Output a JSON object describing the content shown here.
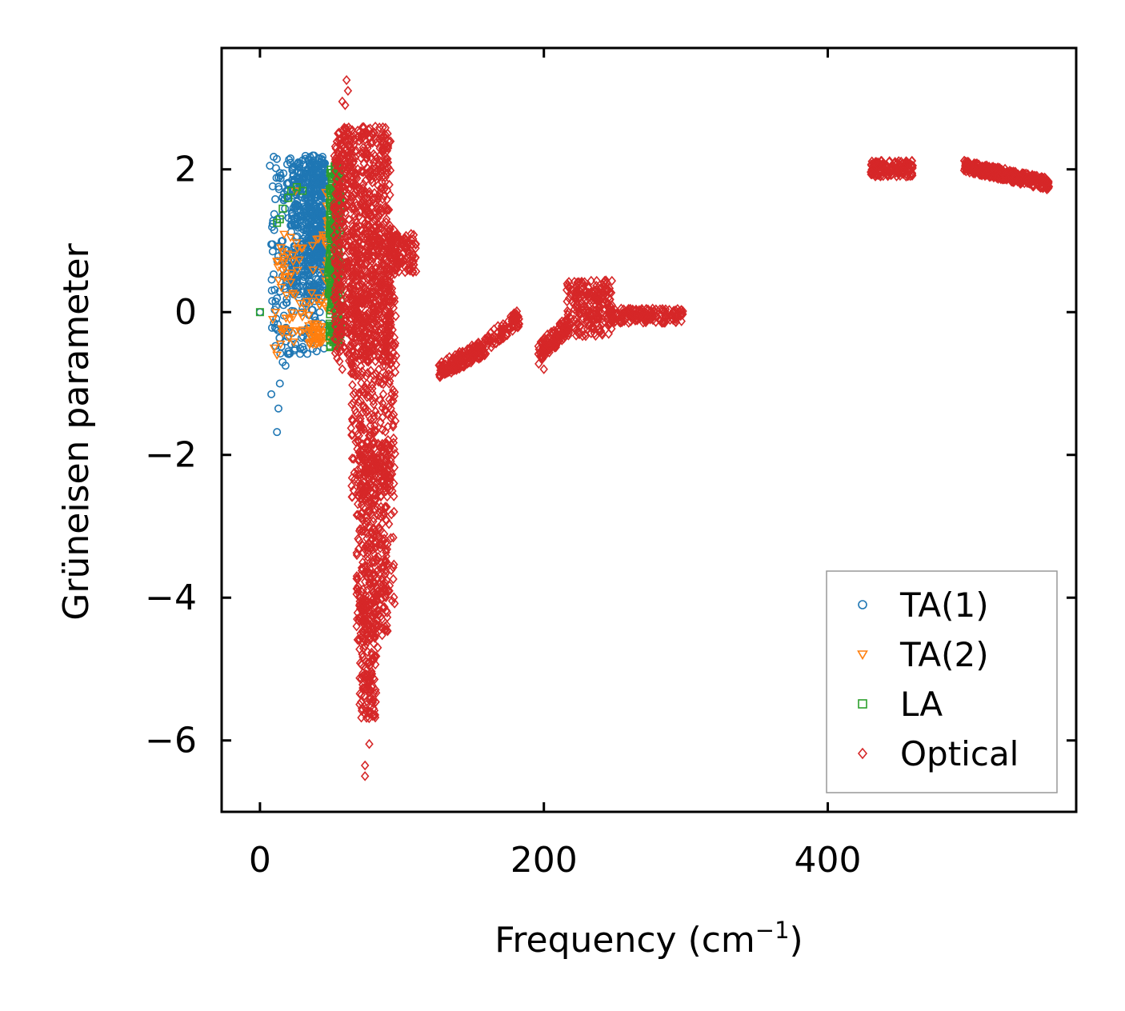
{
  "chart_data": {
    "type": "scatter",
    "title": "",
    "xlabel": "Frequency (cm",
    "xlabel_sup": "−1",
    "xlabel_close": ")",
    "ylabel": "Grüneisen parameter",
    "xlim": [
      -27,
      575
    ],
    "ylim": [
      -7,
      3.7
    ],
    "xticks": [
      0,
      200,
      400
    ],
    "xtick_labels": [
      "0",
      "200",
      "400"
    ],
    "yticks": [
      2,
      0,
      -2,
      -4,
      -6
    ],
    "ytick_labels": [
      "2",
      "0",
      "−2",
      "−4",
      "−6"
    ],
    "grid": false,
    "legend_position": "bottom-right",
    "series": [
      {
        "name": "TA(1)",
        "marker": "circle",
        "color": "#1f77b4",
        "clusters": [
          {
            "x": [
              8,
              46
            ],
            "y": [
              -0.6,
              2.2
            ],
            "n": 260,
            "spread": 1.0
          },
          {
            "x": [
              22,
              46
            ],
            "y": [
              0.2,
              2.15
            ],
            "n": 320,
            "spread": 1.0
          },
          {
            "x": [
              34,
              46
            ],
            "y": [
              0.8,
              2.2
            ],
            "n": 160,
            "spread": 1.0
          }
        ],
        "points": [
          {
            "x": 0,
            "y": 0
          },
          {
            "x": 7,
            "y": 2.05
          },
          {
            "x": 8,
            "y": 0.95
          },
          {
            "x": 9,
            "y": 0.85
          },
          {
            "x": 10,
            "y": 1.15
          },
          {
            "x": 11,
            "y": 0.15
          },
          {
            "x": 8,
            "y": -1.15
          },
          {
            "x": 13,
            "y": -1.35
          },
          {
            "x": 12,
            "y": -1.68
          },
          {
            "x": 14,
            "y": -1.0
          },
          {
            "x": 16,
            "y": -0.7
          },
          {
            "x": 18,
            "y": -0.75
          },
          {
            "x": 20,
            "y": -0.55
          },
          {
            "x": 14,
            "y": 1.95
          },
          {
            "x": 19,
            "y": 1.8
          },
          {
            "x": 16,
            "y": 1.0
          },
          {
            "x": 12,
            "y": 1.3
          },
          {
            "x": 22,
            "y": -0.45
          }
        ]
      },
      {
        "name": "TA(2)",
        "marker": "triangle-down",
        "color": "#ff7f0e",
        "clusters": [
          {
            "x": [
              10,
              52
            ],
            "y": [
              -0.45,
              1.1
            ],
            "n": 80,
            "spread": 1.0
          },
          {
            "x": [
              34,
              44
            ],
            "y": [
              -0.45,
              -0.15
            ],
            "n": 30,
            "spread": 1.0
          },
          {
            "x": [
              46,
              54
            ],
            "y": [
              0.2,
              1.7
            ],
            "n": 40,
            "spread": 1.0
          }
        ],
        "points": [
          {
            "x": 10,
            "y": -0.5
          },
          {
            "x": 12,
            "y": -0.6
          },
          {
            "x": 13,
            "y": 0.45
          },
          {
            "x": 15,
            "y": 0.35
          },
          {
            "x": 18,
            "y": 0.5
          },
          {
            "x": 22,
            "y": 0.55
          },
          {
            "x": 25,
            "y": 1.7
          },
          {
            "x": 30,
            "y": 0.9
          },
          {
            "x": 9,
            "y": -0.1
          },
          {
            "x": 11,
            "y": 0.0
          }
        ]
      },
      {
        "name": "LA",
        "marker": "square",
        "color": "#2ca02c",
        "clusters": [
          {
            "x": [
              49,
              57
            ],
            "y": [
              -0.5,
              2.05
            ],
            "n": 260,
            "spread": 1.0
          },
          {
            "x": [
              48,
              54
            ],
            "y": [
              0.2,
              0.7
            ],
            "n": 40,
            "spread": 1.0
          }
        ],
        "points": [
          {
            "x": 0,
            "y": 0
          },
          {
            "x": 12,
            "y": 1.25
          },
          {
            "x": 14,
            "y": 1.3
          },
          {
            "x": 20,
            "y": 1.6
          },
          {
            "x": 22,
            "y": 1.7
          },
          {
            "x": 26,
            "y": 1.75
          },
          {
            "x": 30,
            "y": 1.7
          },
          {
            "x": 16,
            "y": 1.45
          }
        ]
      },
      {
        "name": "Optical",
        "marker": "diamond",
        "color": "#d62728",
        "clusters": [
          {
            "x": [
              52,
              92
            ],
            "y": [
              -0.7,
              2.6
            ],
            "n": 900,
            "spread": 1.0
          },
          {
            "x": [
              64,
              96
            ],
            "y": [
              -2.6,
              1.2
            ],
            "n": 500,
            "spread": 1.0
          },
          {
            "x": [
              68,
              90
            ],
            "y": [
              -4.6,
              -1.8
            ],
            "n": 350,
            "spread": 1.0
          },
          {
            "x": 87,
            "y": [
              -4.2,
              -1.9
            ],
            "n": 60,
            "spread": 8,
            "slope": -0.2
          },
          {
            "x": [
              70,
              82
            ],
            "y": [
              -5.7,
              -4.0
            ],
            "n": 160,
            "spread": 1.0
          },
          {
            "x": [
              90,
              110
            ],
            "y": [
              0.55,
              1.1
            ],
            "n": 120,
            "spread": 1.0
          },
          {
            "x": [
              126,
              160
            ],
            "y": [
              -1.0,
              -0.3
            ],
            "n": 180,
            "spread": 1.0,
            "diag": true
          },
          {
            "x": [
              160,
              183
            ],
            "y": [
              -0.6,
              0.1
            ],
            "n": 80,
            "spread": 1.0,
            "diag": true
          },
          {
            "x": [
              196,
              218
            ],
            "y": [
              -0.8,
              0.05
            ],
            "n": 120,
            "spread": 1.0,
            "diag": true
          },
          {
            "x": [
              216,
              248
            ],
            "y": [
              -0.35,
              0.45
            ],
            "n": 220,
            "spread": 1.0
          },
          {
            "x": [
              245,
              298
            ],
            "y": [
              -0.15,
              0.05
            ],
            "n": 180,
            "spread": 1.0
          },
          {
            "x": [
              430,
              460
            ],
            "y": [
              1.9,
              2.12
            ],
            "n": 140,
            "spread": 1.0
          },
          {
            "x": [
              496,
              556
            ],
            "y": [
              1.65,
              2.12
            ],
            "n": 320,
            "spread": 1.0,
            "diag": true
          }
        ],
        "points": [
          {
            "x": 61,
            "y": 3.25
          },
          {
            "x": 62,
            "y": 3.1
          },
          {
            "x": 58,
            "y": 2.95
          },
          {
            "x": 60,
            "y": 2.9
          },
          {
            "x": 65,
            "y": 2.55
          },
          {
            "x": 74,
            "y": -6.5
          },
          {
            "x": 74,
            "y": -6.35
          },
          {
            "x": 77,
            "y": -6.05
          },
          {
            "x": 77,
            "y": -5.6
          },
          {
            "x": 69,
            "y": -1.8
          },
          {
            "x": 72,
            "y": -1.6
          },
          {
            "x": 83,
            "y": -4.7
          },
          {
            "x": 86,
            "y": -4.3
          },
          {
            "x": 110,
            "y": 0.57
          },
          {
            "x": 58,
            "y": -0.8
          },
          {
            "x": 200,
            "y": -0.8
          }
        ]
      }
    ]
  }
}
